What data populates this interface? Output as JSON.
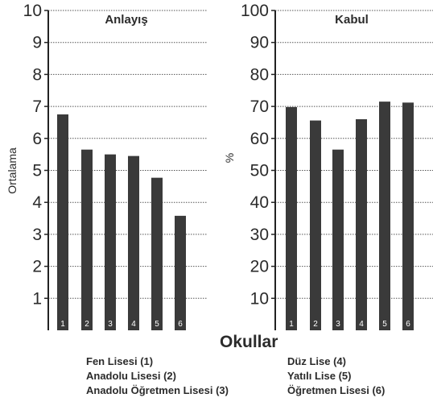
{
  "chart_data": [
    {
      "type": "bar",
      "title": "Anlayış",
      "ylabel": "Ortalama",
      "xlabel": "Okullar",
      "ylim": [
        0,
        10
      ],
      "yticks": [
        1,
        2,
        3,
        4,
        5,
        6,
        7,
        8,
        9,
        10
      ],
      "grid": true,
      "categories": [
        "1",
        "2",
        "3",
        "4",
        "5",
        "6"
      ],
      "values": [
        6.75,
        5.65,
        5.5,
        5.45,
        4.77,
        3.58
      ],
      "bar_color": "#3a3a3a"
    },
    {
      "type": "bar",
      "title": "Kabul",
      "ylabel": "%",
      "xlabel": "Okullar",
      "ylim": [
        0,
        100
      ],
      "yticks": [
        10,
        20,
        30,
        40,
        50,
        60,
        70,
        80,
        90,
        100
      ],
      "grid": true,
      "categories": [
        "1",
        "2",
        "3",
        "4",
        "5",
        "6"
      ],
      "values": [
        69.8,
        65.6,
        56.5,
        66.0,
        71.5,
        71.2
      ],
      "bar_color": "#3a3a3a"
    }
  ],
  "legend": {
    "left": [
      "Fen Lisesi (1)",
      "Anadolu Lisesi (2)",
      "Anadolu Öğretmen Lisesi (3)"
    ],
    "right": [
      "Düz Lise (4)",
      "Yatılı Lise (5)",
      "Öğretmen Lisesi (6)"
    ]
  },
  "colors": {
    "bar": "#3a3a3a",
    "text": "#2b2b2b",
    "grid": "#555555"
  }
}
